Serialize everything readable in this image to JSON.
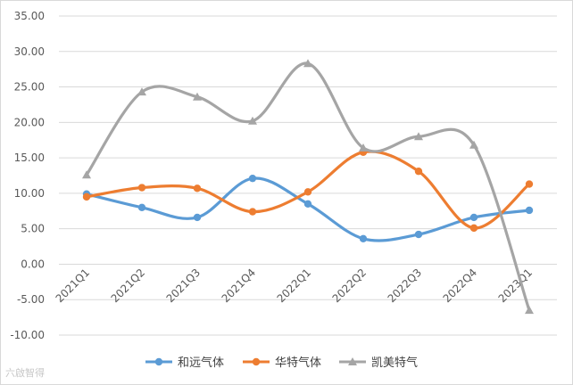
{
  "chart_data": {
    "type": "line",
    "categories": [
      "2021Q1",
      "2021Q2",
      "2021Q3",
      "2021Q4",
      "2022Q1",
      "2022Q2",
      "2022Q3",
      "2022Q4",
      "2023Q1"
    ],
    "series": [
      {
        "name": "和远气体",
        "color": "#5b9bd5",
        "marker": "circle",
        "values": [
          9.9,
          8.0,
          6.6,
          12.1,
          8.5,
          3.6,
          4.2,
          6.6,
          7.6
        ]
      },
      {
        "name": "华特气体",
        "color": "#ed7d31",
        "marker": "circle",
        "values": [
          9.5,
          10.8,
          10.7,
          7.4,
          10.2,
          15.8,
          13.1,
          5.1,
          11.3
        ]
      },
      {
        "name": "凯美特气",
        "color": "#a5a5a5",
        "marker": "triangle",
        "values": [
          12.6,
          24.3,
          23.6,
          20.2,
          28.3,
          16.4,
          18.0,
          16.8,
          -6.5
        ]
      }
    ],
    "ylim": [
      -10,
      35
    ],
    "yticks": [
      "35.00",
      "30.00",
      "25.00",
      "20.00",
      "15.00",
      "10.00",
      "5.00",
      "0.00",
      "-5.00",
      "-10.00"
    ],
    "grid": true,
    "legend_position": "bottom"
  },
  "watermark": "六啟智得"
}
